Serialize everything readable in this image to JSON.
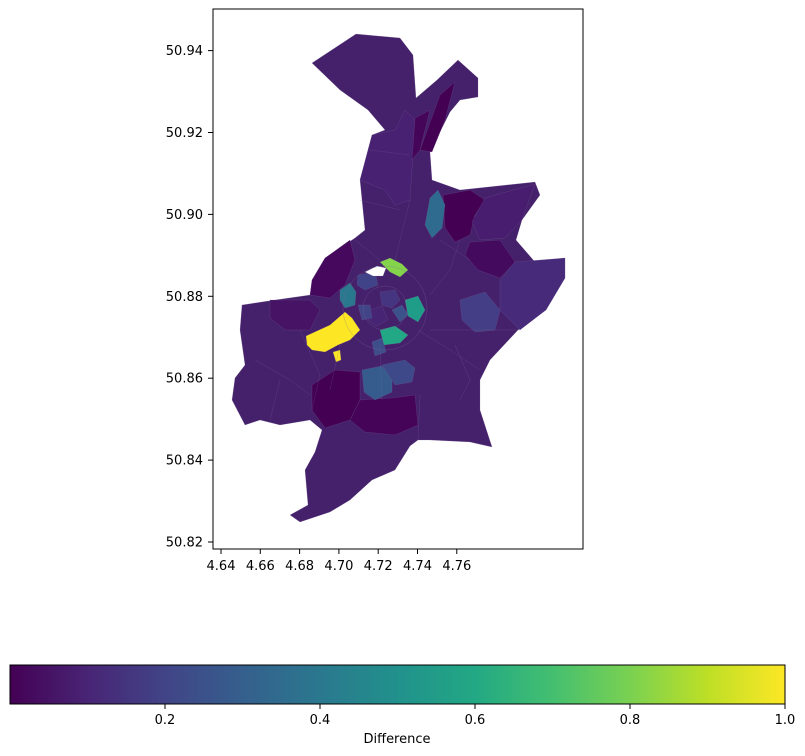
{
  "chart_data": {
    "type": "choropleth",
    "x_ticks": [
      "4.64",
      "4.66",
      "4.68",
      "4.70",
      "4.72",
      "4.74",
      "4.76"
    ],
    "y_ticks": [
      "50.82",
      "50.84",
      "50.86",
      "50.88",
      "50.90",
      "50.92",
      "50.94"
    ],
    "colorbar": {
      "label": "Difference",
      "ticks": [
        "0.2",
        "0.4",
        "0.6",
        "0.8",
        "1.0"
      ],
      "range": [
        0.0,
        1.0
      ],
      "colormap": "viridis"
    },
    "colors": {
      "low": "#440154",
      "base": "#46226b",
      "mid": "#21918c",
      "high": "#fde725"
    }
  }
}
